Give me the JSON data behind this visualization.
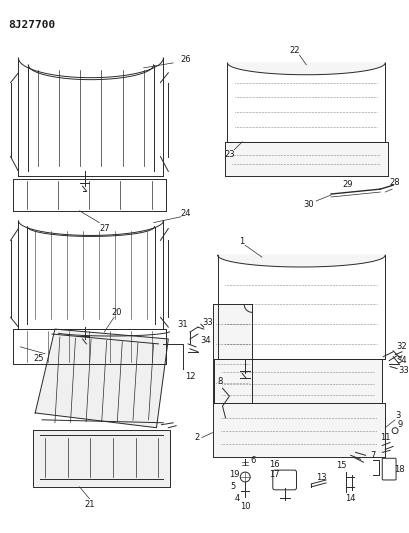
{
  "title": "8J27700",
  "bg_color": "#ffffff",
  "line_color": "#2a2a2a",
  "fig_width": 4.09,
  "fig_height": 5.33,
  "dpi": 100
}
